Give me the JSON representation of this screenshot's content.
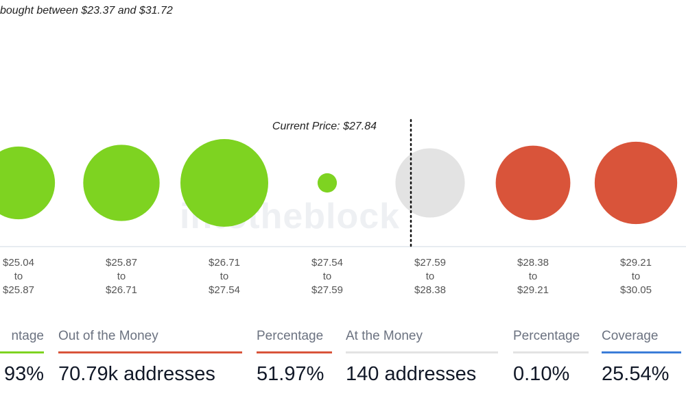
{
  "subtitle": "bought between $23.37 and $31.72",
  "watermark": "intotheblock",
  "colors": {
    "in": "#7ed321",
    "at": "#e3e3e3",
    "out": "#d9543a",
    "axis": "#cfd8e3",
    "coverage": "#3b7dd8"
  },
  "chart_data": {
    "type": "bubble",
    "current_price_label": "Current Price: $27.84",
    "current_price": 27.84,
    "clusters": [
      {
        "from": "$25.04",
        "to_word": "to",
        "to": "$25.87",
        "status": "in",
        "relative_size": 0.83
      },
      {
        "from": "$25.87",
        "to_word": "to",
        "to": "$26.71",
        "status": "in",
        "relative_size": 0.87
      },
      {
        "from": "$26.71",
        "to_word": "to",
        "to": "$27.54",
        "status": "in",
        "relative_size": 1.0
      },
      {
        "from": "$27.54",
        "to_word": "to",
        "to": "$27.59",
        "status": "in",
        "relative_size": 0.22
      },
      {
        "from": "$27.59",
        "to_word": "to",
        "to": "$28.38",
        "status": "at",
        "relative_size": 0.79
      },
      {
        "from": "$28.38",
        "to_word": "to",
        "to": "$29.21",
        "status": "out",
        "relative_size": 0.85
      },
      {
        "from": "$29.21",
        "to_word": "to",
        "to": "$30.05",
        "status": "out",
        "relative_size": 0.94
      }
    ]
  },
  "stats": [
    {
      "label": "ntage",
      "value": "93%",
      "color": "#7ed321"
    },
    {
      "label": "Out of the Money",
      "value": "70.79k addresses",
      "color": "#d9543a"
    },
    {
      "label": "Percentage",
      "value": "51.97%",
      "color": "#d9543a"
    },
    {
      "label": "At the Money",
      "value": "140 addresses",
      "color": "#e3e3e3"
    },
    {
      "label": "Percentage",
      "value": "0.10%",
      "color": "#e3e3e3"
    },
    {
      "label": "Coverage",
      "value": "25.54%",
      "color": "#3b7dd8"
    }
  ]
}
